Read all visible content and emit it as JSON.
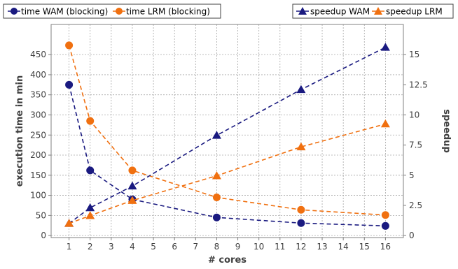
{
  "chart_data": {
    "type": "line",
    "xlabel": "# cores",
    "ylabel_left": "execution time in min",
    "ylabel_right": "speedup",
    "x_ticks": [
      1,
      2,
      3,
      4,
      5,
      6,
      7,
      8,
      9,
      10,
      11,
      12,
      13,
      14,
      15,
      16
    ],
    "xlim": [
      0.15,
      16.85
    ],
    "ylim_left": [
      -5,
      525
    ],
    "ylim_right": [
      -0.17,
      17.5
    ],
    "y_ticks_left": [
      0,
      50,
      100,
      150,
      200,
      250,
      300,
      350,
      400,
      450
    ],
    "y_ticks_right": [
      0,
      2.5,
      5,
      7.5,
      10,
      12.5,
      15
    ],
    "y_tick_labels_right": [
      "0",
      "2.5",
      "5",
      "7.5",
      "10",
      "12.5",
      "15"
    ],
    "grid": true,
    "legend_left": [
      "time WAM (blocking)",
      "time LRM (blocking)"
    ],
    "legend_right": [
      "speedup WAM",
      "speedup LRM"
    ],
    "series": [
      {
        "name": "time WAM (blocking)",
        "axis": "left",
        "marker": "circle",
        "color": "#1a1a80",
        "x": [
          1,
          2,
          4,
          8,
          12,
          16
        ],
        "values": [
          375,
          162,
          90,
          45,
          31,
          24
        ]
      },
      {
        "name": "time LRM (blocking)",
        "axis": "left",
        "marker": "circle",
        "color": "#f07010",
        "x": [
          1,
          2,
          4,
          8,
          12,
          16
        ],
        "values": [
          473,
          285,
          162,
          95,
          64,
          51
        ]
      },
      {
        "name": "speedup WAM",
        "axis": "right",
        "marker": "triangle",
        "color": "#1a1a80",
        "x": [
          1,
          2,
          4,
          8,
          12,
          16
        ],
        "values": [
          1.0,
          2.3,
          4.1,
          8.3,
          12.1,
          15.6
        ]
      },
      {
        "name": "speedup LRM",
        "axis": "right",
        "marker": "triangle",
        "color": "#f07010",
        "x": [
          1,
          2,
          4,
          8,
          12,
          16
        ],
        "values": [
          1.0,
          1.65,
          2.9,
          4.95,
          7.35,
          9.25
        ]
      }
    ]
  }
}
